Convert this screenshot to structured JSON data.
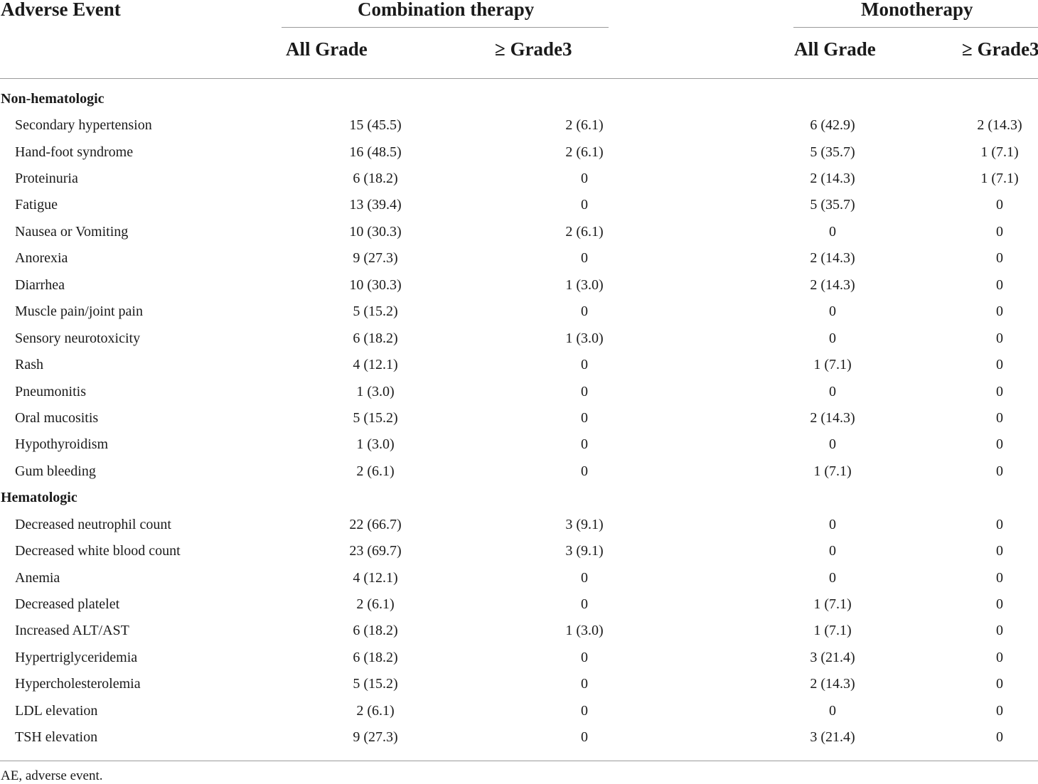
{
  "header": {
    "first_col": "Adverse Event",
    "groups": [
      "Combination therapy",
      "Monotherapy"
    ],
    "subcols": [
      "All Grade",
      "≥ Grade3",
      "All Grade",
      "≥ Grade3"
    ]
  },
  "sections": [
    {
      "title": "Non-hematologic",
      "rows": [
        {
          "event": "Secondary hypertension",
          "values": [
            "15 (45.5)",
            "2 (6.1)",
            "6 (42.9)",
            "2 (14.3)"
          ]
        },
        {
          "event": "Hand-foot syndrome",
          "values": [
            "16 (48.5)",
            "2 (6.1)",
            "5 (35.7)",
            "1 (7.1)"
          ]
        },
        {
          "event": "Proteinuria",
          "values": [
            "6 (18.2)",
            "0",
            "2 (14.3)",
            "1 (7.1)"
          ]
        },
        {
          "event": "Fatigue",
          "values": [
            "13 (39.4)",
            "0",
            "5 (35.7)",
            "0"
          ]
        },
        {
          "event": "Nausea or Vomiting",
          "values": [
            "10 (30.3)",
            "2 (6.1)",
            "0",
            "0"
          ]
        },
        {
          "event": "Anorexia",
          "values": [
            "9 (27.3)",
            "0",
            "2 (14.3)",
            "0"
          ]
        },
        {
          "event": "Diarrhea",
          "values": [
            "10 (30.3)",
            "1 (3.0)",
            "2 (14.3)",
            "0"
          ]
        },
        {
          "event": "Muscle pain/joint pain",
          "values": [
            "5 (15.2)",
            "0",
            "0",
            "0"
          ]
        },
        {
          "event": "Sensory neurotoxicity",
          "values": [
            "6 (18.2)",
            "1 (3.0)",
            "0",
            "0"
          ]
        },
        {
          "event": "Rash",
          "values": [
            "4 (12.1)",
            "0",
            "1 (7.1)",
            "0"
          ]
        },
        {
          "event": "Pneumonitis",
          "values": [
            "1 (3.0)",
            "0",
            "0",
            "0"
          ]
        },
        {
          "event": "Oral mucositis",
          "values": [
            "5 (15.2)",
            "0",
            "2 (14.3)",
            "0"
          ]
        },
        {
          "event": "Hypothyroidism",
          "values": [
            "1 (3.0)",
            "0",
            "0",
            "0"
          ]
        },
        {
          "event": "Gum bleeding",
          "values": [
            "2 (6.1)",
            "0",
            "1 (7.1)",
            "0"
          ]
        }
      ]
    },
    {
      "title": "Hematologic",
      "rows": [
        {
          "event": "Decreased neutrophil count",
          "values": [
            "22 (66.7)",
            "3 (9.1)",
            "0",
            "0"
          ]
        },
        {
          "event": "Decreased white blood count",
          "values": [
            "23 (69.7)",
            "3 (9.1)",
            "0",
            "0"
          ]
        },
        {
          "event": "Anemia",
          "values": [
            "4 (12.1)",
            "0",
            "0",
            "0"
          ]
        },
        {
          "event": "Decreased platelet",
          "values": [
            "2 (6.1)",
            "0",
            "1 (7.1)",
            "0"
          ]
        },
        {
          "event": "Increased ALT/AST",
          "values": [
            "6 (18.2)",
            "1 (3.0)",
            "1 (7.1)",
            "0"
          ]
        },
        {
          "event": "Hypertriglyceridemia",
          "values": [
            "6 (18.2)",
            "0",
            "3 (21.4)",
            "0"
          ]
        },
        {
          "event": "Hypercholesterolemia",
          "values": [
            "5 (15.2)",
            "0",
            "2 (14.3)",
            "0"
          ]
        },
        {
          "event": "LDL elevation",
          "values": [
            "2 (6.1)",
            "0",
            "0",
            "0"
          ]
        },
        {
          "event": "TSH elevation",
          "values": [
            "9 (27.3)",
            "0",
            "3 (21.4)",
            "0"
          ]
        }
      ]
    }
  ],
  "footnote": "AE, adverse event."
}
